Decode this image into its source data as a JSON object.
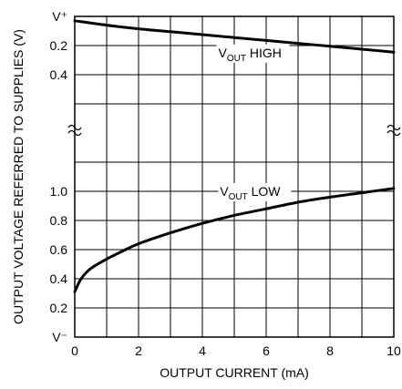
{
  "chart_data": {
    "type": "line",
    "xlabel": "OUTPUT CURRENT (mA)",
    "ylabel": "OUTPUT VOLTAGE REFERRED TO SUPPLIES (V)",
    "xlim": [
      0,
      10
    ],
    "x_ticks": [
      "0",
      "2",
      "4",
      "6",
      "8",
      "10"
    ],
    "grid": true,
    "axis_break": true,
    "upper_panel": {
      "ylim": [
        0,
        0.5
      ],
      "y_ticks": [
        "V⁺",
        "0.2",
        "0.4"
      ],
      "reference": "V+"
    },
    "lower_panel": {
      "ylim": [
        0,
        1.2
      ],
      "y_ticks": [
        "V⁻",
        "0.2",
        "0.4",
        "0.6",
        "0.8",
        "1.0"
      ],
      "reference": "V-"
    },
    "series": [
      {
        "name": "VOUT HIGH",
        "name_main": "V",
        "name_sub": "OUT",
        "name_rest": " HIGH",
        "panel": "upper",
        "x": [
          0,
          1,
          2,
          3,
          4,
          5,
          6,
          7,
          8,
          9,
          10
        ],
        "y": [
          0.03,
          0.06,
          0.085,
          0.105,
          0.125,
          0.145,
          0.165,
          0.185,
          0.205,
          0.225,
          0.245
        ]
      },
      {
        "name": "VOUT LOW",
        "name_main": "V",
        "name_sub": "OUT",
        "name_rest": " LOW",
        "panel": "lower",
        "x": [
          0,
          0.2,
          0.5,
          1,
          1.5,
          2,
          3,
          4,
          5,
          6,
          7,
          8,
          9,
          10
        ],
        "y": [
          0.31,
          0.4,
          0.47,
          0.535,
          0.59,
          0.64,
          0.715,
          0.78,
          0.835,
          0.88,
          0.925,
          0.96,
          0.99,
          1.02
        ]
      }
    ]
  }
}
